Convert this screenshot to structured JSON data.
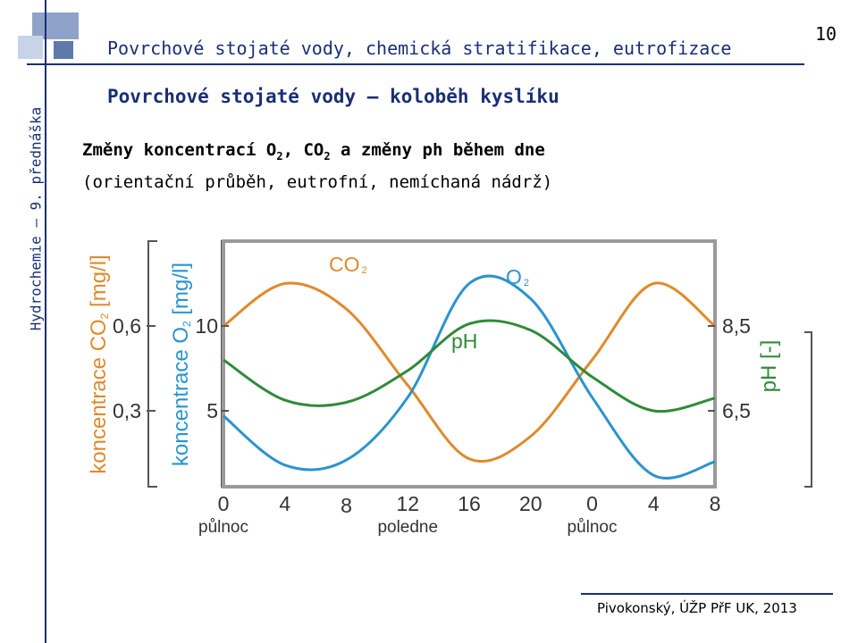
{
  "slide": {
    "header_title": "Povrchové stojaté vody, chemická stratifikace, eutrofizace",
    "number": "10",
    "section_title": "Povrchové stojaté vody – koloběh kyslíku",
    "side_label": "Hydrochemie – 9. přednáška",
    "subtitle_parts": [
      "Změny koncentrací O",
      "2",
      ", CO",
      "2",
      " a změny ph během dne"
    ],
    "subtitle_line2": "(orientační průběh, eutrofní, nemíchaná nádrž)",
    "footer": "Pivokonský, ÚŽP PřF UK, 2013"
  },
  "colors": {
    "co2": "#e08a2c",
    "o2": "#2a93cf",
    "ph": "#2e8b3a",
    "title": "#1a2f73"
  },
  "chart_data": {
    "type": "line",
    "x": [
      0,
      4,
      8,
      12,
      16,
      20,
      0,
      4,
      8
    ],
    "x_hours": [
      0,
      4,
      8,
      12,
      16,
      20,
      24,
      28,
      32
    ],
    "x_sublabels": [
      {
        "text": "půlnoc",
        "at": 0
      },
      {
        "text": "poledne",
        "at": 12
      },
      {
        "text": "půlnoc",
        "at": 24
      }
    ],
    "axes": {
      "co2": {
        "label": "koncentrace CO",
        "sub": "2",
        "unit": " [mg/l]",
        "ticks": [
          "0,6",
          "0,3"
        ],
        "tick_values": [
          0.6,
          0.3
        ]
      },
      "o2": {
        "label": "koncentrace O",
        "sub": "2",
        "unit": " [mg/l]",
        "ticks": [
          "10",
          "5"
        ],
        "tick_values": [
          10,
          5
        ]
      },
      "ph": {
        "label": "pH [-]",
        "ticks": [
          "8,5",
          "6,5"
        ],
        "tick_values": [
          8.5,
          6.5
        ]
      }
    },
    "series": [
      {
        "name": "CO",
        "sub": "2",
        "axis": "co2",
        "hours": [
          0,
          4,
          8,
          12,
          16,
          20,
          24,
          28,
          32
        ],
        "values": [
          0.6,
          0.75,
          0.66,
          0.39,
          0.13,
          0.21,
          0.48,
          0.75,
          0.6
        ]
      },
      {
        "name": "O",
        "sub": "2",
        "axis": "o2",
        "hours": [
          0,
          4,
          8,
          12,
          16,
          20,
          24,
          28,
          32
        ],
        "values": [
          4.7,
          1.8,
          2.1,
          5.8,
          12.5,
          11.6,
          5.8,
          1.2,
          2.0
        ]
      },
      {
        "name": "pH",
        "axis": "ph",
        "hours": [
          0,
          4,
          8,
          12,
          16,
          20,
          24,
          28,
          32
        ],
        "values": [
          7.7,
          6.75,
          6.7,
          7.45,
          8.55,
          8.4,
          7.3,
          6.5,
          6.8
        ]
      }
    ]
  }
}
